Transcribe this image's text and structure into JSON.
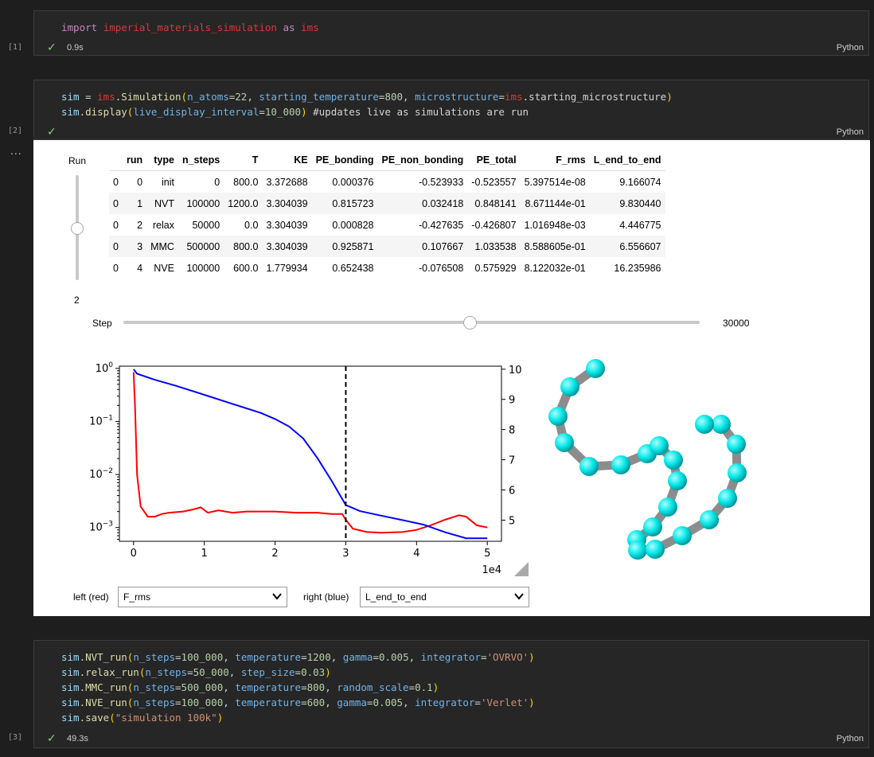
{
  "cells": [
    {
      "number": "[1]",
      "time": "0.9s",
      "lang": "Python",
      "code": [
        [
          "import ",
          "k"
        ],
        [
          "imperial_materials_simulation",
          "m"
        ],
        [
          " as ",
          "k"
        ],
        [
          "ims",
          "m"
        ]
      ]
    },
    {
      "number": "[2]",
      "time": "",
      "lang": "Python"
    },
    {
      "number": "[3]",
      "time": "49.3s",
      "lang": "Python"
    }
  ],
  "cell2_code": [
    [
      [
        "sim",
        "p"
      ],
      [
        " = ",
        "w"
      ],
      [
        "ims",
        "m"
      ],
      [
        ".Simulation",
        "f"
      ],
      [
        "(",
        "y"
      ],
      [
        "n_atoms",
        "ps"
      ],
      [
        "=",
        "w"
      ],
      [
        "22",
        "n"
      ],
      [
        ", ",
        "w"
      ],
      [
        "starting_temperature",
        "ps"
      ],
      [
        "=",
        "w"
      ],
      [
        "800",
        "n"
      ],
      [
        ", ",
        "w"
      ],
      [
        "microstructure",
        "ps"
      ],
      [
        "=",
        "w"
      ],
      [
        "ims",
        "m"
      ],
      [
        ".starting_microstructure",
        "w"
      ],
      [
        ")",
        "y"
      ]
    ],
    [
      [
        "sim",
        "p"
      ],
      [
        ".display",
        "f"
      ],
      [
        "(",
        "y"
      ],
      [
        "live_display_interval",
        "ps"
      ],
      [
        "=",
        "w"
      ],
      [
        "10_000",
        "n"
      ],
      [
        ")",
        "y"
      ],
      [
        " #updates live as simulations are run",
        "w"
      ]
    ]
  ],
  "cell3_code": [
    [
      [
        "sim",
        "p"
      ],
      [
        ".NVT_run",
        "f"
      ],
      [
        "(",
        "y"
      ],
      [
        "n_steps",
        "ps"
      ],
      [
        "=",
        "w"
      ],
      [
        "100_000",
        "n"
      ],
      [
        ", ",
        "w"
      ],
      [
        "temperature",
        "ps"
      ],
      [
        "=",
        "w"
      ],
      [
        "1200",
        "n"
      ],
      [
        ", ",
        "w"
      ],
      [
        "gamma",
        "ps"
      ],
      [
        "=",
        "w"
      ],
      [
        "0.005",
        "n"
      ],
      [
        ", ",
        "w"
      ],
      [
        "integrator",
        "ps"
      ],
      [
        "=",
        "w"
      ],
      [
        "'OVRVO'",
        "s"
      ],
      [
        ")",
        "y"
      ]
    ],
    [
      [
        "sim",
        "p"
      ],
      [
        ".relax_run",
        "f"
      ],
      [
        "(",
        "y"
      ],
      [
        "n_steps",
        "ps"
      ],
      [
        "=",
        "w"
      ],
      [
        "50_000",
        "n"
      ],
      [
        ", ",
        "w"
      ],
      [
        "step_size",
        "ps"
      ],
      [
        "=",
        "w"
      ],
      [
        "0.03",
        "n"
      ],
      [
        ")",
        "y"
      ]
    ],
    [
      [
        "sim",
        "p"
      ],
      [
        ".MMC_run",
        "f"
      ],
      [
        "(",
        "y"
      ],
      [
        "n_steps",
        "ps"
      ],
      [
        "=",
        "w"
      ],
      [
        "500_000",
        "n"
      ],
      [
        ", ",
        "w"
      ],
      [
        "temperature",
        "ps"
      ],
      [
        "=",
        "w"
      ],
      [
        "800",
        "n"
      ],
      [
        ", ",
        "w"
      ],
      [
        "random_scale",
        "ps"
      ],
      [
        "=",
        "w"
      ],
      [
        "0.1",
        "n"
      ],
      [
        ")",
        "y"
      ]
    ],
    [
      [
        "sim",
        "p"
      ],
      [
        ".NVE_run",
        "f"
      ],
      [
        "(",
        "y"
      ],
      [
        "n_steps",
        "ps"
      ],
      [
        "=",
        "w"
      ],
      [
        "100_000",
        "n"
      ],
      [
        ", ",
        "w"
      ],
      [
        "temperature",
        "ps"
      ],
      [
        "=",
        "w"
      ],
      [
        "600",
        "n"
      ],
      [
        ", ",
        "w"
      ],
      [
        "gamma",
        "ps"
      ],
      [
        "=",
        "w"
      ],
      [
        "0.005",
        "n"
      ],
      [
        ", ",
        "w"
      ],
      [
        "integrator",
        "ps"
      ],
      [
        "=",
        "w"
      ],
      [
        "'Verlet'",
        "s"
      ],
      [
        ")",
        "y"
      ]
    ],
    [
      [
        "sim",
        "p"
      ],
      [
        ".save",
        "f"
      ],
      [
        "(",
        "y"
      ],
      [
        "\"simulation 100k\"",
        "s"
      ],
      [
        ")",
        "y"
      ]
    ]
  ],
  "output_menu": "...",
  "run_slider": {
    "label": "Run",
    "value": "2",
    "fraction": 0.5
  },
  "step_slider": {
    "label": "Step",
    "value": "30000",
    "fraction": 0.6
  },
  "table": {
    "headers": [
      "",
      "run",
      "type",
      "n_steps",
      "T",
      "KE",
      "PE_bonding",
      "PE_non_bonding",
      "PE_total",
      "F_rms",
      "L_end_to_end"
    ],
    "rows": [
      [
        "0",
        "0",
        "init",
        "0",
        "800.0",
        "3.372688",
        "0.000376",
        "-0.523933",
        "-0.523557",
        "5.397514e-08",
        "9.166074"
      ],
      [
        "0",
        "1",
        "NVT",
        "100000",
        "1200.0",
        "3.304039",
        "0.815723",
        "0.032418",
        "0.848141",
        "8.671144e-01",
        "9.830440"
      ],
      [
        "0",
        "2",
        "relax",
        "50000",
        "0.0",
        "3.304039",
        "0.000828",
        "-0.427635",
        "-0.426807",
        "1.016948e-03",
        "4.446775"
      ],
      [
        "0",
        "3",
        "MMC",
        "500000",
        "800.0",
        "3.304039",
        "0.925871",
        "0.107667",
        "1.033538",
        "8.588605e-01",
        "6.556607"
      ],
      [
        "0",
        "4",
        "NVE",
        "100000",
        "600.0",
        "1.779934",
        "0.652438",
        "-0.076508",
        "0.575929",
        "8.122032e-01",
        "16.235986"
      ]
    ]
  },
  "chart_data": {
    "type": "line",
    "x_ticks": [
      "0",
      "1",
      "2",
      "3",
      "4",
      "5"
    ],
    "x_offset_label": "1e4",
    "xlim": [
      -0.2,
      5.2
    ],
    "left_axis": {
      "scale": "log",
      "ticks": [
        {
          "base": "10",
          "exp": "0",
          "v": 1
        },
        {
          "base": "10",
          "exp": "−1",
          "v": 0.1
        },
        {
          "base": "10",
          "exp": "−2",
          "v": 0.01
        },
        {
          "base": "10",
          "exp": "−3",
          "v": 0.001
        }
      ],
      "ylim": [
        0.00055,
        1.1
      ]
    },
    "right_axis": {
      "scale": "linear",
      "ticks": [
        "5",
        "6",
        "7",
        "8",
        "9",
        "10"
      ],
      "ylim": [
        4.3,
        10.1
      ]
    },
    "vline_x": 3,
    "series": [
      {
        "color": "#ff0000",
        "axis": "left",
        "points": [
          [
            0,
            0.85
          ],
          [
            0.02,
            0.2
          ],
          [
            0.05,
            0.01
          ],
          [
            0.1,
            0.0025
          ],
          [
            0.2,
            0.0016
          ],
          [
            0.3,
            0.0016
          ],
          [
            0.4,
            0.0018
          ],
          [
            0.5,
            0.0019
          ],
          [
            0.7,
            0.002
          ],
          [
            0.85,
            0.0022
          ],
          [
            0.95,
            0.0024
          ],
          [
            1.05,
            0.0019
          ],
          [
            1.2,
            0.0021
          ],
          [
            1.4,
            0.0019
          ],
          [
            1.6,
            0.002
          ],
          [
            1.8,
            0.002
          ],
          [
            2.0,
            0.002
          ],
          [
            2.3,
            0.0019
          ],
          [
            2.6,
            0.0019
          ],
          [
            2.8,
            0.0018
          ],
          [
            2.95,
            0.0018
          ],
          [
            3.0,
            0.0014
          ],
          [
            3.1,
            0.00095
          ],
          [
            3.3,
            0.00082
          ],
          [
            3.5,
            0.0008
          ],
          [
            3.8,
            0.00082
          ],
          [
            4.0,
            0.0009
          ],
          [
            4.2,
            0.0011
          ],
          [
            4.4,
            0.0014
          ],
          [
            4.6,
            0.0017
          ],
          [
            4.7,
            0.0016
          ],
          [
            4.85,
            0.0011
          ],
          [
            5.0,
            0.001
          ]
        ]
      },
      {
        "color": "#0000ff",
        "axis": "right",
        "points": [
          [
            0,
            10.0
          ],
          [
            0.05,
            9.85
          ],
          [
            0.3,
            9.65
          ],
          [
            0.6,
            9.45
          ],
          [
            1.0,
            9.15
          ],
          [
            1.4,
            8.85
          ],
          [
            1.8,
            8.55
          ],
          [
            2.0,
            8.35
          ],
          [
            2.2,
            8.1
          ],
          [
            2.4,
            7.7
          ],
          [
            2.6,
            7.05
          ],
          [
            2.8,
            6.3
          ],
          [
            3.0,
            5.5
          ],
          [
            3.2,
            5.3
          ],
          [
            3.5,
            5.15
          ],
          [
            3.8,
            5.0
          ],
          [
            4.1,
            4.85
          ],
          [
            4.4,
            4.6
          ],
          [
            4.7,
            4.4
          ],
          [
            5.0,
            4.4
          ]
        ]
      }
    ]
  },
  "left_dropdown": {
    "label": "left (red)",
    "value": "F_rms"
  },
  "right_dropdown": {
    "label": "right (blue)",
    "value": "L_end_to_end"
  }
}
